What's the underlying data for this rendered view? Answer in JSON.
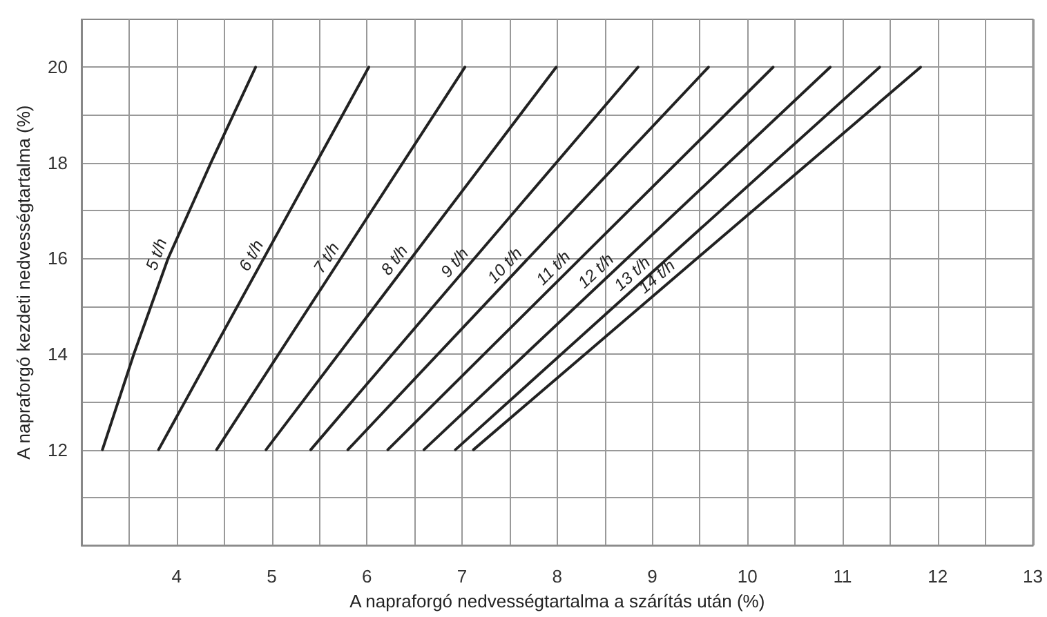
{
  "chart_data": {
    "type": "line",
    "xlabel": "A napraforgó nedvességtartalma a szárítás után (%)",
    "ylabel": "A napraforgó kezdeti nedvességtartalma (%)",
    "xlim": [
      3,
      13
    ],
    "ylim": [
      10,
      21
    ],
    "xticks": [
      {
        "value": 3.5,
        "label": null
      },
      4,
      {
        "value": 4.5,
        "label": null
      },
      5,
      {
        "value": 5.5,
        "label": null
      },
      6,
      {
        "value": 6.5,
        "label": null
      },
      7,
      {
        "value": 7.5,
        "label": null
      },
      8,
      {
        "value": 8.5,
        "label": null
      },
      9,
      {
        "value": 9.5,
        "label": null
      },
      10,
      {
        "value": 10.5,
        "label": null
      },
      11,
      {
        "value": 11.5,
        "label": null
      },
      12,
      {
        "value": 12.5,
        "label": null
      },
      13
    ],
    "yticks": [
      {
        "value": 11,
        "label": null
      },
      12,
      {
        "value": 13,
        "label": null
      },
      14,
      {
        "value": 15,
        "label": null
      },
      16,
      {
        "value": 17,
        "label": null
      },
      18,
      {
        "value": 19,
        "label": null
      },
      20
    ],
    "grid": true,
    "legend": false,
    "marker": "none",
    "line_style": "solid",
    "series": [
      {
        "name": "5 t/h",
        "color": "#222222",
        "x": [
          3.22,
          3.55,
          3.91,
          4.36,
          4.83
        ],
        "values": [
          12,
          14,
          16,
          18,
          20
        ]
      },
      {
        "name": "6 t/h",
        "color": "#222222",
        "x": [
          3.81,
          6.02
        ],
        "values": [
          12,
          20
        ]
      },
      {
        "name": "7 t/h",
        "color": "#222222",
        "x": [
          4.42,
          7.03
        ],
        "values": [
          12,
          20
        ]
      },
      {
        "name": "8 t/h",
        "color": "#222222",
        "x": [
          4.94,
          7.99
        ],
        "values": [
          12,
          20
        ]
      },
      {
        "name": "9 t/h",
        "color": "#222222",
        "x": [
          5.41,
          8.85
        ],
        "values": [
          12,
          20
        ]
      },
      {
        "name": "10 t/h",
        "color": "#222222",
        "x": [
          5.8,
          9.59
        ],
        "values": [
          12,
          20
        ]
      },
      {
        "name": "11 t/h",
        "color": "#222222",
        "x": [
          6.22,
          10.27
        ],
        "values": [
          12,
          20
        ]
      },
      {
        "name": "12 t/h",
        "color": "#222222",
        "x": [
          6.6,
          10.87
        ],
        "values": [
          12,
          20
        ]
      },
      {
        "name": "13 t/h",
        "color": "#222222",
        "x": [
          6.93,
          11.39
        ],
        "values": [
          12,
          20
        ]
      },
      {
        "name": "14 t/h",
        "color": "#222222",
        "x": [
          7.12,
          11.82
        ],
        "values": [
          12,
          20
        ]
      }
    ]
  }
}
